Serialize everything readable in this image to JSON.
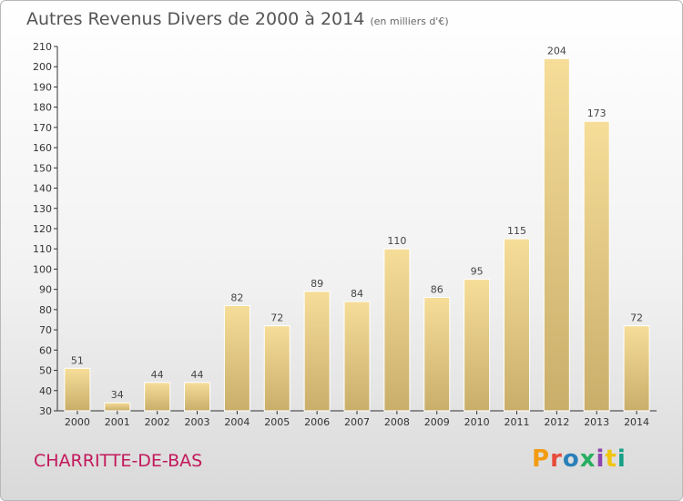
{
  "title": "Autres Revenus Divers de 2000 à 2014",
  "subtitle": "(en milliers d'€)",
  "place": "CHARRITTE-DE-BAS",
  "logo": {
    "text": "Proxiti",
    "colors": [
      "#f39c12",
      "#e74c3c",
      "#2980b9",
      "#27ae60",
      "#8e44ad",
      "#f1c40f",
      "#16a085"
    ]
  },
  "colors": {
    "bar_top": "#f6dd98",
    "bar_bottom": "#c9ae6a",
    "place": "#c2185b"
  },
  "chart_data": {
    "type": "bar",
    "title": "Autres Revenus Divers de 2000 à 2014",
    "subtitle": "(en milliers d'€)",
    "categories": [
      "2000",
      "2001",
      "2002",
      "2003",
      "2004",
      "2005",
      "2006",
      "2007",
      "2008",
      "2009",
      "2010",
      "2011",
      "2012",
      "2013",
      "2014"
    ],
    "values": [
      51,
      34,
      44,
      44,
      82,
      72,
      89,
      84,
      110,
      86,
      95,
      115,
      204,
      173,
      72
    ],
    "ylim": [
      30,
      210
    ],
    "yticks": [
      30,
      40,
      50,
      60,
      70,
      80,
      90,
      100,
      110,
      120,
      130,
      140,
      150,
      160,
      170,
      180,
      190,
      200,
      210
    ],
    "grid": false,
    "data_labels": true
  }
}
